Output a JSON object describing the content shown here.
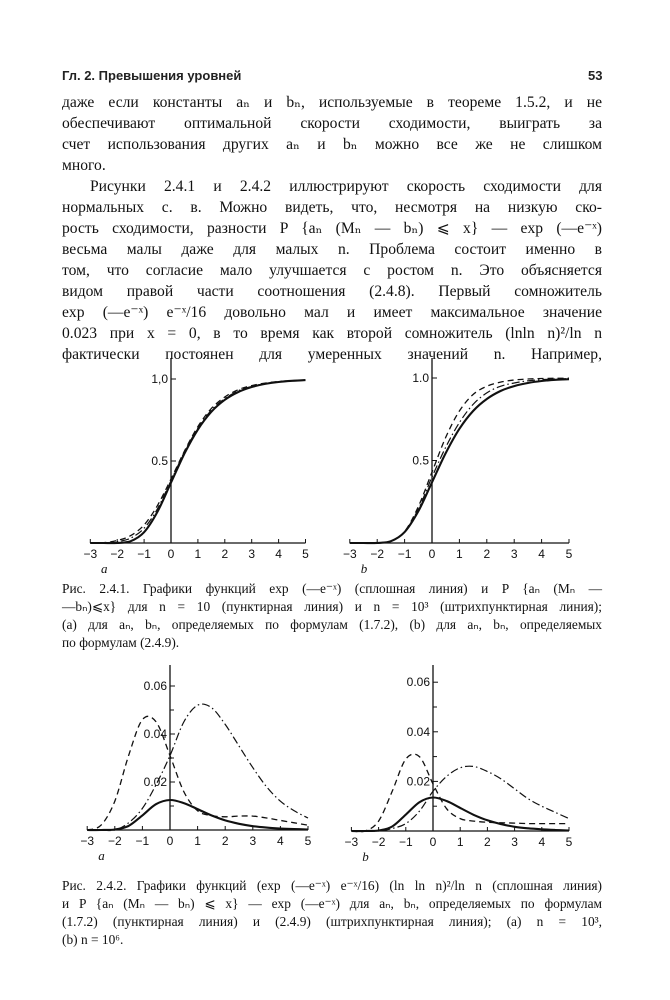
{
  "header": {
    "running_title": "Гл. 2. Превышения уровней",
    "page_number": "53"
  },
  "paragraphs": [
    {
      "lines": [
        "даже если константы aₙ и bₙ, используемые в теореме 1.5.2, и не",
        "обеспечивают оптимальной скорости сходимости, выиграть за",
        "счет использования других aₙ и bₙ можно все же не слишком",
        "много."
      ]
    },
    {
      "lines": [
        "Рисунки 2.4.1 и 2.4.2 иллюстрируют скорость сходимости для",
        "нормальных с. в. Можно видеть, что, несмотря на низкую ско-",
        "рость сходимости, разности P {aₙ (Mₙ — bₙ) ⩽ x} — exp (—e⁻ˣ)",
        "весьма малы даже для малых n. Проблема состоит именно в",
        "том, что согласие мало улучшается с ростом n. Это объясняется",
        "видом правой части соотношения (2.4.8). Первый сомножитель",
        "exp (—e⁻ˣ) e⁻ˣ/16 довольно мал и имеет максимальное значение",
        "0.023 при x = 0, в то время как второй сомножитель (lnln n)²/ln n",
        "фактически постоянен для умеренных значений n. Например,"
      ]
    }
  ],
  "captions": [
    {
      "lines": [
        "Рис. 2.4.1. Графики функций exp (—e⁻ˣ) (сплошная линия) и P {aₙ (Mₙ —",
        "—bₙ)⩽x} для n = 10 (пунктирная линия) и n = 10³ (штрихпунктирная линия);",
        "(a) для aₙ, bₙ, определяемых по формулам (1.7.2), (b) для aₙ, bₙ, определяемых",
        "по формулам (2.4.9)."
      ]
    },
    {
      "lines": [
        "Рис. 2.4.2. Графики функций (exp (—e⁻ˣ) e⁻ˣ/16) (ln ln n)²/ln n (сплошная линия)",
        "и P {aₙ (Mₙ — bₙ) ⩽ x} — exp (—e⁻ˣ) для aₙ, bₙ, определяемых по формулам",
        "(1.7.2) (пунктирная линия) и (2.4.9) (штрихпунктирная линия); (a) n = 10³,",
        "(b) n = 10⁶."
      ]
    }
  ],
  "chart_data": [
    {
      "type": "line",
      "figure": "2.4.1",
      "panel_label": "a",
      "x": [
        -3,
        -2.5,
        -2,
        -1.5,
        -1,
        -0.5,
        0,
        0.5,
        1,
        1.5,
        2,
        2.5,
        3,
        3.5,
        4,
        4.5,
        5
      ],
      "xlim": [
        -3,
        5
      ],
      "ylim": [
        0,
        1.1
      ],
      "x_tick_labels": [
        "−3",
        "−2",
        "−1",
        "0",
        "1",
        "2",
        "3",
        "4",
        "5"
      ],
      "y_ticks": [
        0.5,
        1.0
      ],
      "y_tick_labels": [
        "0.5",
        "1,0"
      ],
      "grid": false,
      "legend": "none",
      "series": [
        {
          "style": "solid",
          "values": [
            0,
            0,
            0.0006,
            0.011,
            0.066,
            0.192,
            0.368,
            0.545,
            0.692,
            0.8,
            0.873,
            0.921,
            0.951,
            0.97,
            0.982,
            0.989,
            0.993
          ]
        },
        {
          "style": "dashed",
          "values": [
            0,
            0.002,
            0.015,
            0.045,
            0.11,
            0.23,
            0.39,
            0.56,
            0.71,
            0.82,
            0.89,
            0.935,
            0.96,
            0.975,
            0.985,
            0.99,
            0.993
          ]
        },
        {
          "style": "dash-dot",
          "values": [
            0,
            0.001,
            0.008,
            0.03,
            0.09,
            0.21,
            0.38,
            0.555,
            0.7,
            0.81,
            0.88,
            0.928,
            0.955,
            0.972,
            0.983,
            0.99,
            0.993
          ]
        }
      ]
    },
    {
      "type": "line",
      "figure": "2.4.1",
      "panel_label": "b",
      "x": [
        -3,
        -2.5,
        -2,
        -1.5,
        -1,
        -0.5,
        0,
        0.5,
        1,
        1.5,
        2,
        2.5,
        3,
        3.5,
        4,
        4.5,
        5
      ],
      "xlim": [
        -3,
        5
      ],
      "ylim": [
        0,
        1.1
      ],
      "x_tick_labels": [
        "−3",
        "−2",
        "−1",
        "0",
        "1",
        "2",
        "3",
        "4",
        "5"
      ],
      "y_ticks": [
        0.5,
        1.0
      ],
      "y_tick_labels": [
        "0.5",
        "1.0"
      ],
      "grid": false,
      "legend": "none",
      "series": [
        {
          "style": "solid",
          "values": [
            0,
            0,
            0.0006,
            0.011,
            0.066,
            0.192,
            0.368,
            0.545,
            0.692,
            0.8,
            0.873,
            0.921,
            0.951,
            0.97,
            0.982,
            0.989,
            0.993
          ]
        },
        {
          "style": "dashed",
          "values": [
            0,
            0,
            0.001,
            0.012,
            0.07,
            0.22,
            0.43,
            0.64,
            0.8,
            0.9,
            0.95,
            0.975,
            0.988,
            0.994,
            0.997,
            0.998,
            0.999
          ]
        },
        {
          "style": "dash-dot",
          "values": [
            0,
            0,
            0.001,
            0.012,
            0.068,
            0.205,
            0.4,
            0.58,
            0.73,
            0.84,
            0.91,
            0.95,
            0.97,
            0.983,
            0.99,
            0.994,
            0.996
          ]
        }
      ]
    },
    {
      "type": "line",
      "figure": "2.4.2",
      "panel_label": "a",
      "x": [
        -3,
        -2.5,
        -2,
        -1.5,
        -1,
        -0.5,
        0,
        0.5,
        1,
        1.5,
        2,
        2.5,
        3,
        3.5,
        4,
        4.5,
        5
      ],
      "xlim": [
        -3,
        5
      ],
      "ylim": [
        0,
        0.07
      ],
      "x_tick_labels": [
        "−3",
        "−2",
        "−1",
        "0",
        "1",
        "2",
        "3",
        "4",
        "5"
      ],
      "y_ticks": [
        0.02,
        0.04,
        0.06
      ],
      "y_tick_labels": [
        "0.02",
        "0.04",
        "0.06"
      ],
      "grid": false,
      "legend": "none",
      "series": [
        {
          "style": "solid",
          "values": [
            0,
            0,
            0.0002,
            0.0017,
            0.0061,
            0.0108,
            0.0125,
            0.0112,
            0.0087,
            0.0061,
            0.004,
            0.0026,
            0.0016,
            0.001,
            0.0006,
            0.0004,
            0.0002
          ]
        },
        {
          "style": "dashed",
          "values": [
            0,
            0.002,
            0.012,
            0.031,
            0.046,
            0.045,
            0.031,
            0.016,
            0.008,
            0.006,
            0.0055,
            0.0058,
            0.0058,
            0.005,
            0.004,
            0.003,
            0.002
          ]
        },
        {
          "style": "dash-dot",
          "values": [
            0,
            0,
            0,
            0.003,
            0.009,
            0.019,
            0.031,
            0.045,
            0.052,
            0.051,
            0.044,
            0.035,
            0.026,
            0.018,
            0.012,
            0.008,
            0.005
          ]
        }
      ]
    },
    {
      "type": "line",
      "figure": "2.4.2",
      "panel_label": "b",
      "x": [
        -3,
        -2.5,
        -2,
        -1.5,
        -1,
        -0.5,
        0,
        0.5,
        1,
        1.5,
        2,
        2.5,
        3,
        3.5,
        4,
        4.5,
        5
      ],
      "xlim": [
        -3,
        5
      ],
      "ylim": [
        0,
        0.07
      ],
      "x_tick_labels": [
        "−3",
        "−2",
        "−1",
        "0",
        "1",
        "2",
        "3",
        "4",
        "5"
      ],
      "y_ticks": [
        0.02,
        0.04,
        0.06
      ],
      "y_tick_labels": [
        "0.02",
        "0.04",
        "0.06"
      ],
      "grid": false,
      "legend": "none",
      "series": [
        {
          "style": "solid",
          "values": [
            0,
            0,
            0.0002,
            0.0018,
            0.0066,
            0.0116,
            0.0135,
            0.0121,
            0.0093,
            0.0065,
            0.0043,
            0.0028,
            0.0017,
            0.0011,
            0.0007,
            0.0004,
            0.0002
          ]
        },
        {
          "style": "dashed",
          "values": [
            0,
            0,
            0.004,
            0.016,
            0.029,
            0.03,
            0.019,
            0.009,
            0.005,
            0.004,
            0.0035,
            0.0033,
            0.0032,
            0.003,
            0.003,
            0.003,
            0.003
          ]
        },
        {
          "style": "dash-dot",
          "values": [
            0,
            0,
            0,
            0.001,
            0.003,
            0.008,
            0.016,
            0.022,
            0.0255,
            0.026,
            0.024,
            0.021,
            0.017,
            0.013,
            0.01,
            0.0075,
            0.005
          ]
        }
      ]
    }
  ]
}
